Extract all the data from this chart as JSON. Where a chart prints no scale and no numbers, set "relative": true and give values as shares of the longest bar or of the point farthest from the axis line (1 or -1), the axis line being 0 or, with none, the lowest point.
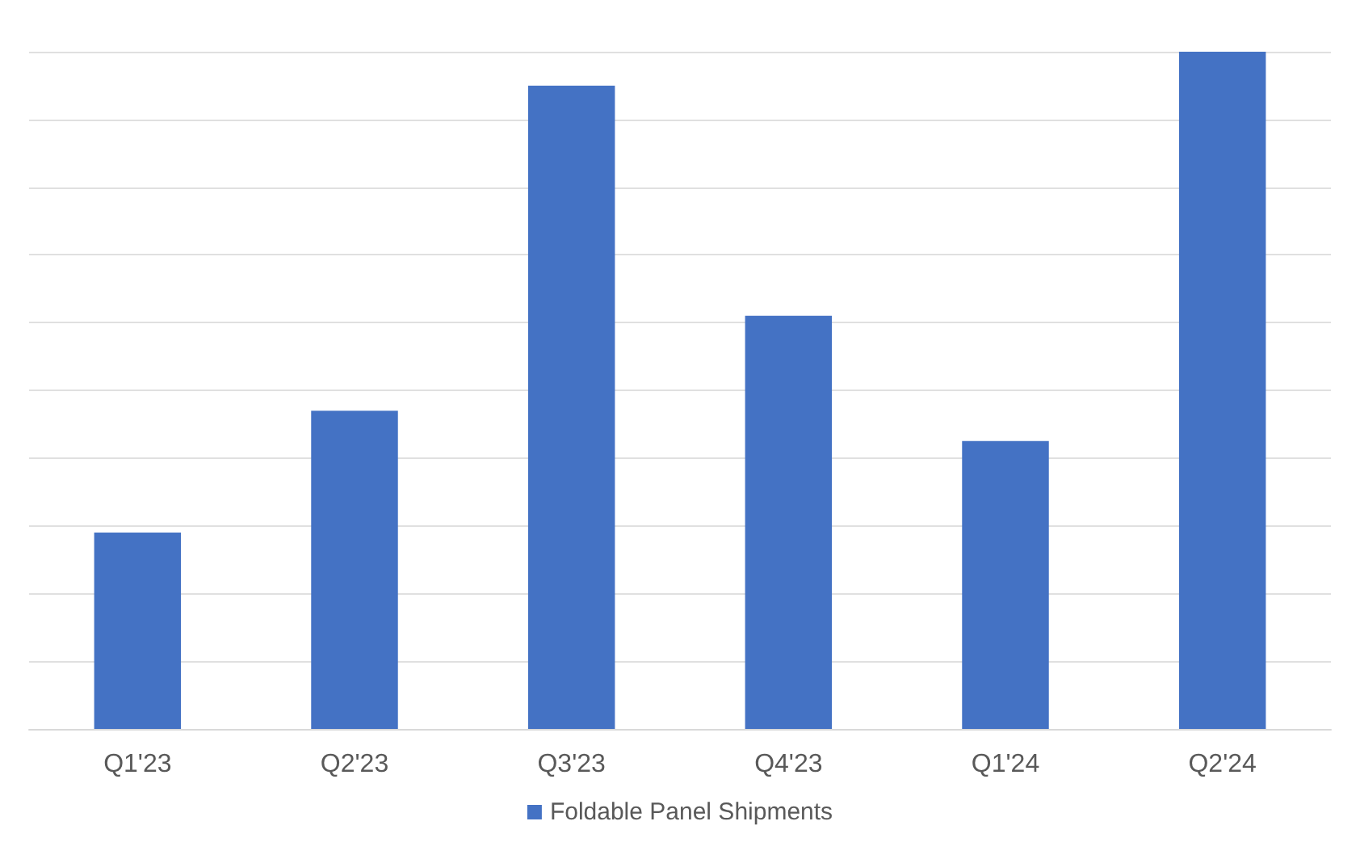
{
  "chart_data": {
    "type": "bar",
    "relative": true,
    "categories": [
      "Q1'23",
      "Q2'23",
      "Q3'23",
      "Q4'23",
      "Q1'24",
      "Q2'24"
    ],
    "series": [
      {
        "name": "Foldable Panel Shipments",
        "color": "#4472c4",
        "values": [
          0.29,
          0.47,
          0.95,
          0.61,
          0.425,
          1
        ]
      }
    ],
    "grid": "y",
    "legend": "bottom"
  }
}
